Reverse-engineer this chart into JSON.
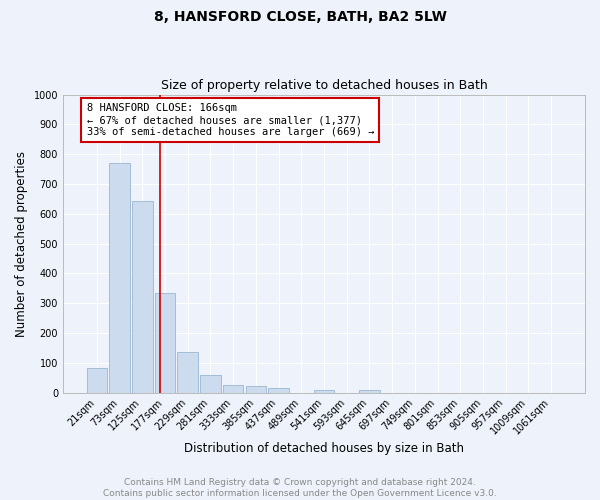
{
  "title": "8, HANSFORD CLOSE, BATH, BA2 5LW",
  "subtitle": "Size of property relative to detached houses in Bath",
  "xlabel": "Distribution of detached houses by size in Bath",
  "ylabel": "Number of detached properties",
  "bar_color": "#ccdcee",
  "bar_edge_color": "#9ab8d0",
  "background_color": "#eef2fa",
  "grid_color": "#ffffff",
  "categories": [
    "21sqm",
    "73sqm",
    "125sqm",
    "177sqm",
    "229sqm",
    "281sqm",
    "333sqm",
    "385sqm",
    "437sqm",
    "489sqm",
    "541sqm",
    "593sqm",
    "645sqm",
    "697sqm",
    "749sqm",
    "801sqm",
    "853sqm",
    "905sqm",
    "957sqm",
    "1009sqm",
    "1061sqm"
  ],
  "values": [
    83,
    770,
    644,
    334,
    135,
    60,
    25,
    22,
    15,
    0,
    8,
    0,
    10,
    0,
    0,
    0,
    0,
    0,
    0,
    0,
    0
  ],
  "ylim": [
    0,
    1000
  ],
  "yticks": [
    0,
    100,
    200,
    300,
    400,
    500,
    600,
    700,
    800,
    900,
    1000
  ],
  "marker_label": "8 HANSFORD CLOSE: 166sqm",
  "annotation_line1": "← 67% of detached houses are smaller (1,377)",
  "annotation_line2": "33% of semi-detached houses are larger (669) →",
  "annotation_box_color": "#ffffff",
  "annotation_box_edge": "#cc0000",
  "marker_line_color": "#cc0000",
  "footer1": "Contains HM Land Registry data © Crown copyright and database right 2024.",
  "footer2": "Contains public sector information licensed under the Open Government Licence v3.0.",
  "title_fontsize": 10,
  "subtitle_fontsize": 9,
  "axis_label_fontsize": 8.5,
  "tick_fontsize": 7,
  "annotation_fontsize": 7.5,
  "footer_fontsize": 6.5
}
